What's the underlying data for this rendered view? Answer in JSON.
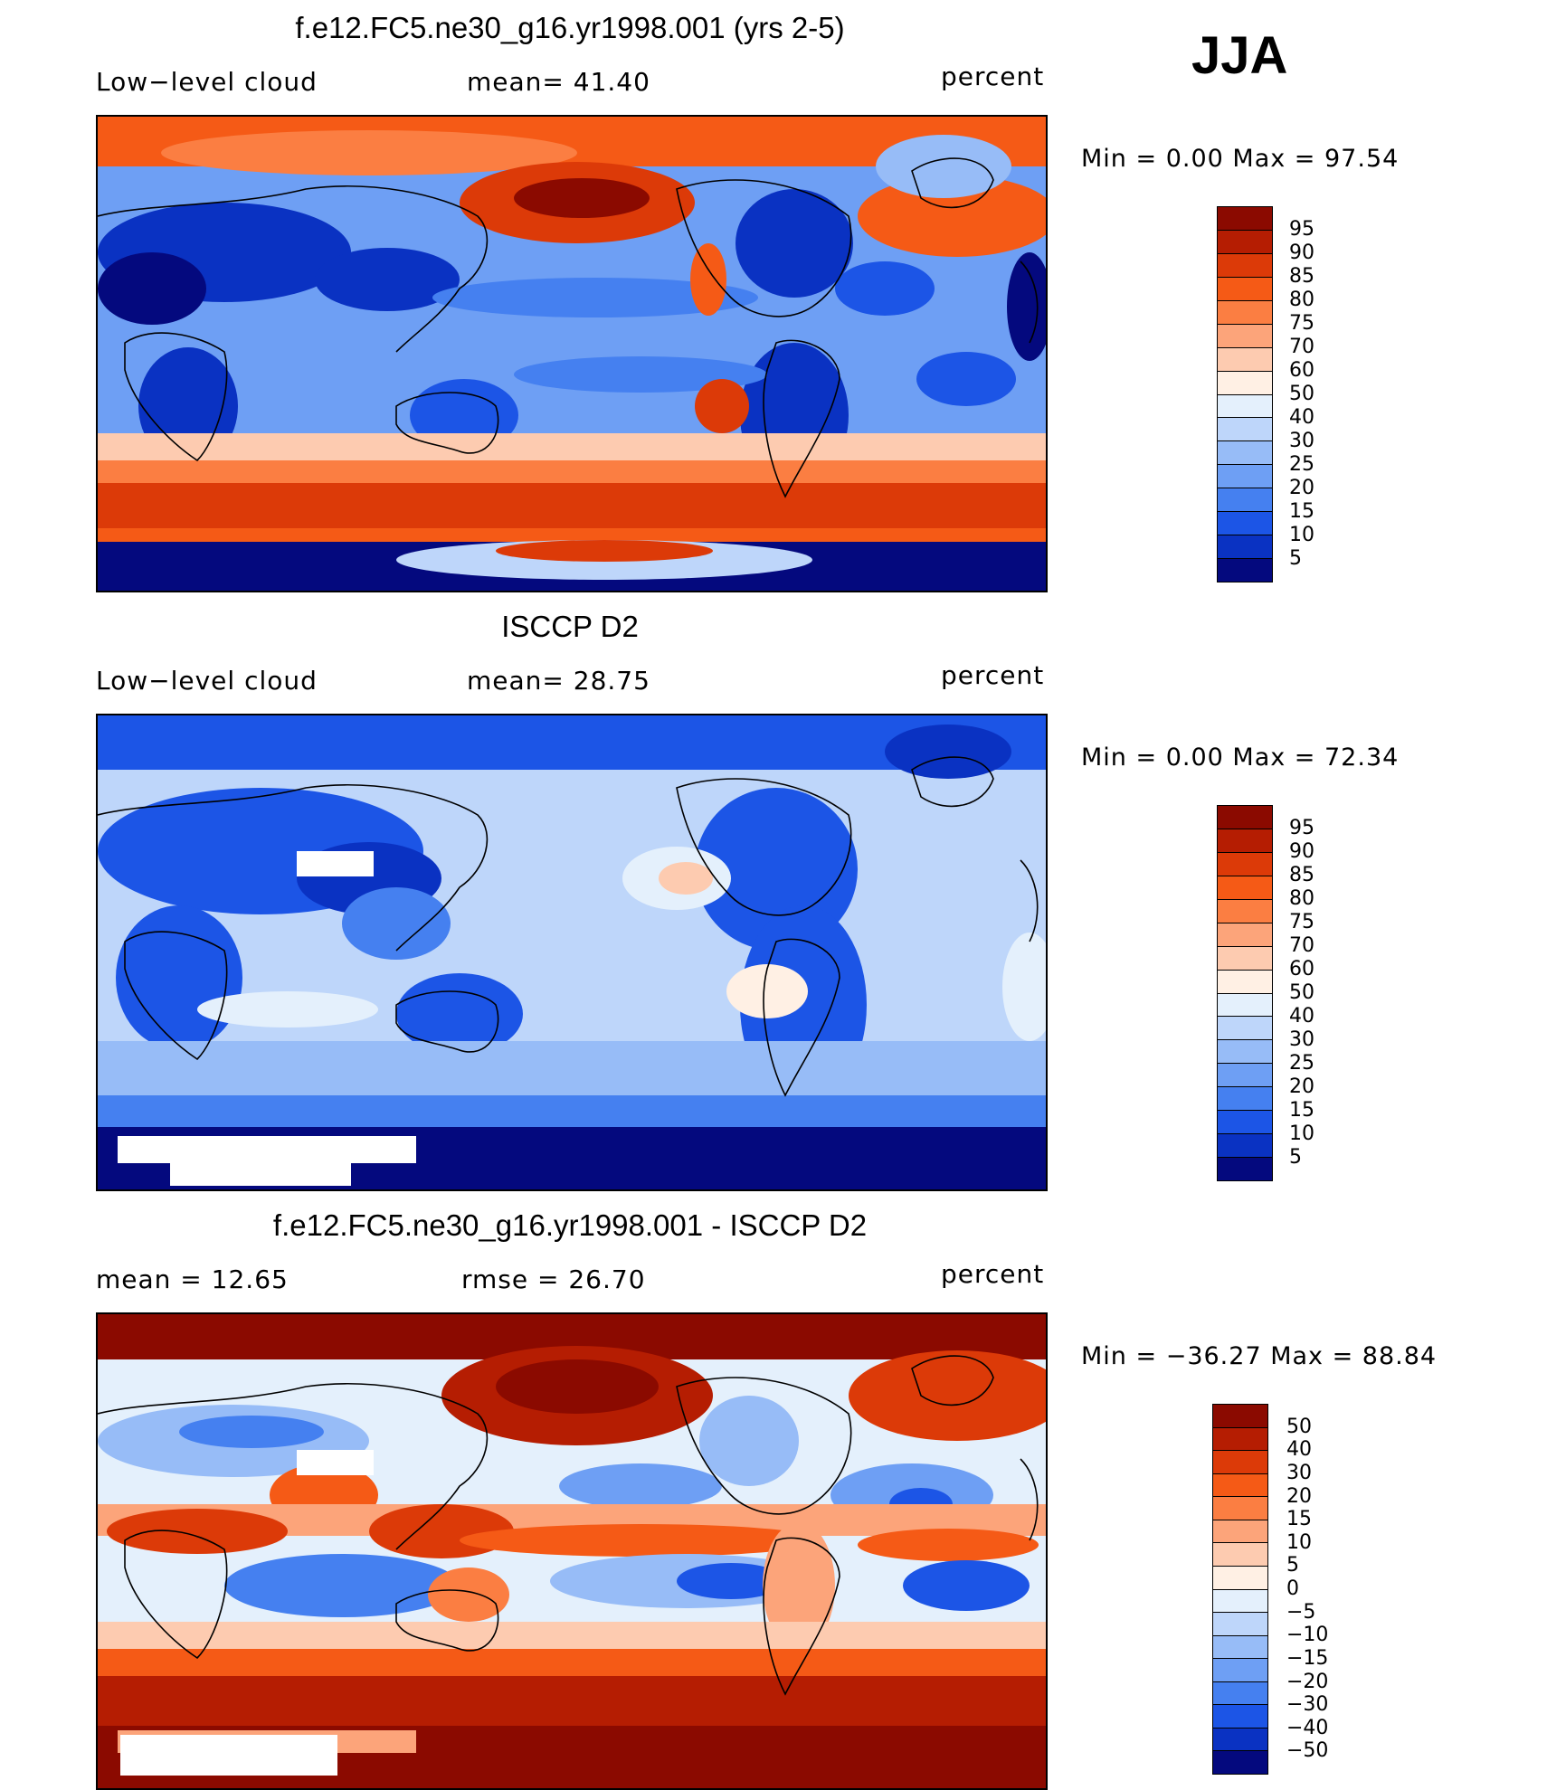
{
  "season_label": "JJA",
  "chart_data": [
    {
      "type": "heatmap",
      "title": "f.e12.FC5.ne30_g16.yr1998.001 (yrs 2-5)",
      "left_label": "Low−level cloud",
      "center_label": "mean=   41.40",
      "units": "percent",
      "min_label": "Min  =     0.00  Max  =    97.54",
      "mean": 41.4,
      "min": 0.0,
      "max": 97.54,
      "colorbar_levels": [
        "95",
        "90",
        "85",
        "80",
        "75",
        "70",
        "60",
        "50",
        "40",
        "30",
        "25",
        "20",
        "15",
        "10",
        "5"
      ],
      "colors": [
        "#8b0a00",
        "#b51d02",
        "#dc3a08",
        "#f55a16",
        "#fb7e42",
        "#fca47a",
        "#fdcbb0",
        "#fff0e4",
        "#e4f0fc",
        "#bed6fa",
        "#97bcf7",
        "#6e9ff4",
        "#4580f0",
        "#1c55e6",
        "#0a32c2",
        "#04097e"
      ]
    },
    {
      "type": "heatmap",
      "title": "ISCCP D2",
      "left_label": "Low−level cloud",
      "center_label": "mean=   28.75",
      "units": "percent",
      "min_label": "Min  =     0.00  Max  =    72.34",
      "mean": 28.75,
      "min": 0.0,
      "max": 72.34,
      "colorbar_levels": [
        "95",
        "90",
        "85",
        "80",
        "75",
        "70",
        "60",
        "50",
        "40",
        "30",
        "25",
        "20",
        "15",
        "10",
        "5"
      ],
      "colors": [
        "#8b0a00",
        "#b51d02",
        "#dc3a08",
        "#f55a16",
        "#fb7e42",
        "#fca47a",
        "#fdcbb0",
        "#fff0e4",
        "#e4f0fc",
        "#bed6fa",
        "#97bcf7",
        "#6e9ff4",
        "#4580f0",
        "#1c55e6",
        "#0a32c2",
        "#04097e"
      ]
    },
    {
      "type": "heatmap",
      "title": "f.e12.FC5.ne30_g16.yr1998.001 - ISCCP D2",
      "left_label": "mean  =     12.65",
      "center_label": "rmse  =     26.70",
      "units": "percent",
      "min_label": "Min  = −36.27  Max  =    88.84",
      "mean": 12.65,
      "rmse": 26.7,
      "min": -36.27,
      "max": 88.84,
      "colorbar_levels": [
        "50",
        "40",
        "30",
        "20",
        "15",
        "10",
        "5",
        "0",
        "−5",
        "−10",
        "−15",
        "−20",
        "−30",
        "−40",
        "−50"
      ],
      "colors": [
        "#8b0a00",
        "#b51d02",
        "#dc3a08",
        "#f55a16",
        "#fb7e42",
        "#fca47a",
        "#fdcbb0",
        "#fff0e4",
        "#e4f0fc",
        "#bed6fa",
        "#97bcf7",
        "#6e9ff4",
        "#4580f0",
        "#1c55e6",
        "#0a32c2",
        "#04097e"
      ]
    }
  ]
}
